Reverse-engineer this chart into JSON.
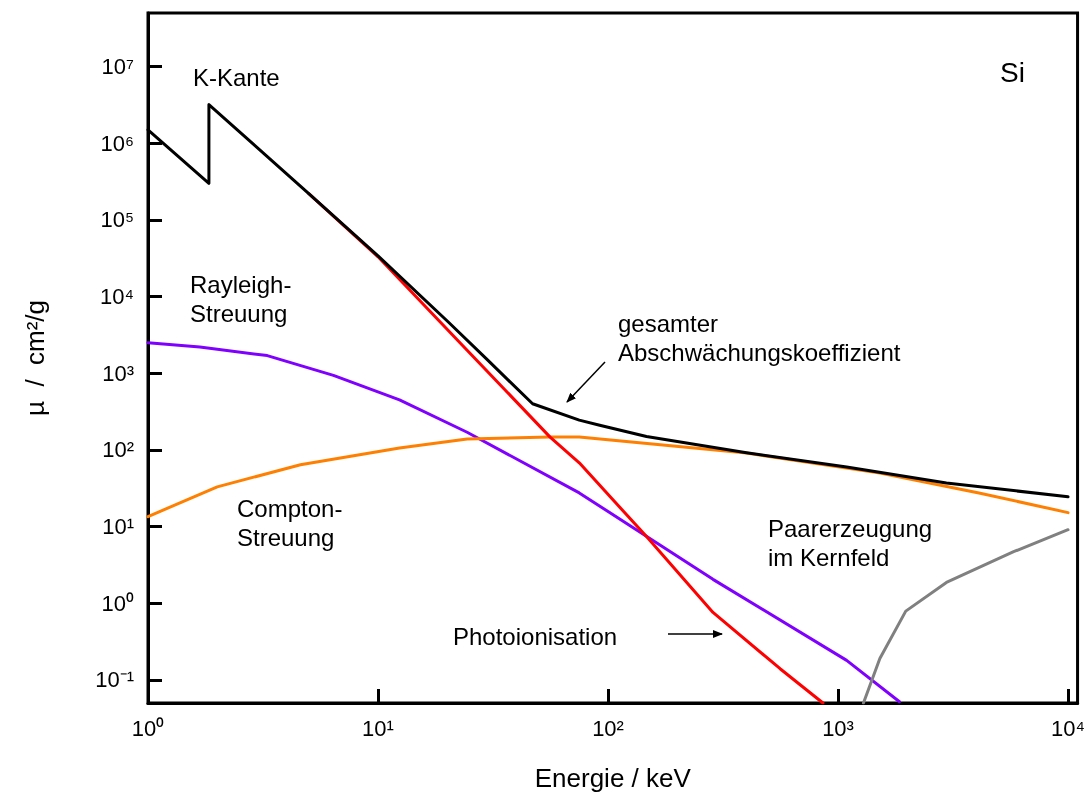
{
  "chart_data": {
    "type": "line",
    "xlabel": "Energie / keV",
    "ylabel": "µ  /  cm²/g",
    "log": "xy",
    "xlim": [
      1,
      11000
    ],
    "ylim": [
      0.05,
      50000000
    ],
    "xticks": [
      {
        "value": 1,
        "label": "10⁰"
      },
      {
        "value": 10,
        "label": "10¹"
      },
      {
        "value": 100,
        "label": "10²"
      },
      {
        "value": 1000,
        "label": "10³"
      },
      {
        "value": 10000,
        "label": "10⁴"
      }
    ],
    "yticks": [
      {
        "value": 0.1,
        "label": "10⁻¹"
      },
      {
        "value": 1,
        "label": "10⁰"
      },
      {
        "value": 10,
        "label": "10¹"
      },
      {
        "value": 100,
        "label": "10²"
      },
      {
        "value": 1000,
        "label": "10³"
      },
      {
        "value": 10000,
        "label": "10⁴"
      },
      {
        "value": 100000,
        "label": "10⁵"
      },
      {
        "value": 1000000,
        "label": "10⁶"
      },
      {
        "value": 10000000,
        "label": "10⁷"
      }
    ],
    "marker": "none",
    "line_style": "solid",
    "series": [
      {
        "color": "#8000ff",
        "x": [
          1,
          1.68,
          3.3,
          6.4,
          12.4,
          24.4,
          75,
          286,
          1090,
          1850
        ],
        "values": [
          2500,
          2200,
          1700,
          940,
          450,
          170,
          27.5,
          2.05,
          0.18,
          0.052
        ]
      },
      {
        "color": "#ff8000",
        "x": [
          1,
          2,
          4.6,
          12.4,
          24.4,
          56,
          75,
          400,
          1520,
          4100,
          10000
        ],
        "values": [
          13.5,
          33,
          64,
          106,
          139,
          147,
          147,
          91,
          50,
          27.5,
          15.2
        ]
      },
      {
        "color": "#808080",
        "x": [
          1290,
          1520,
          1970,
          2960,
          5800,
          10000
        ],
        "values": [
          0.05,
          0.19,
          0.79,
          1.87,
          4.7,
          9.1
        ]
      },
      {
        "color": "#ff0000",
        "x": [
          5,
          10,
          24.4,
          56,
          75,
          147,
          286,
          560,
          860
        ],
        "values": [
          220000,
          33000,
          2000,
          147,
          68,
          7.4,
          0.76,
          0.14,
          0.05
        ]
      },
      {
        "color": "#000000",
        "x": [
          1,
          1.84,
          1.84,
          5,
          10,
          20,
          30,
          47,
          75,
          92,
          147,
          400,
          1090,
          2960,
          10000
        ],
        "values": [
          1500000,
          300000,
          3200000,
          220000,
          34000,
          4800,
          1480,
          400,
          245,
          210,
          150,
          92,
          60,
          37,
          24.5
        ]
      }
    ],
    "annotations": [
      "K-Kante",
      "Si",
      "Rayleigh-\nStreuung",
      "gesamter\nAbschwächungskoeffizient",
      "Compton-\nStreuung",
      "Paarerzeugung\nim Kernfeld",
      "Photoionisation"
    ]
  }
}
